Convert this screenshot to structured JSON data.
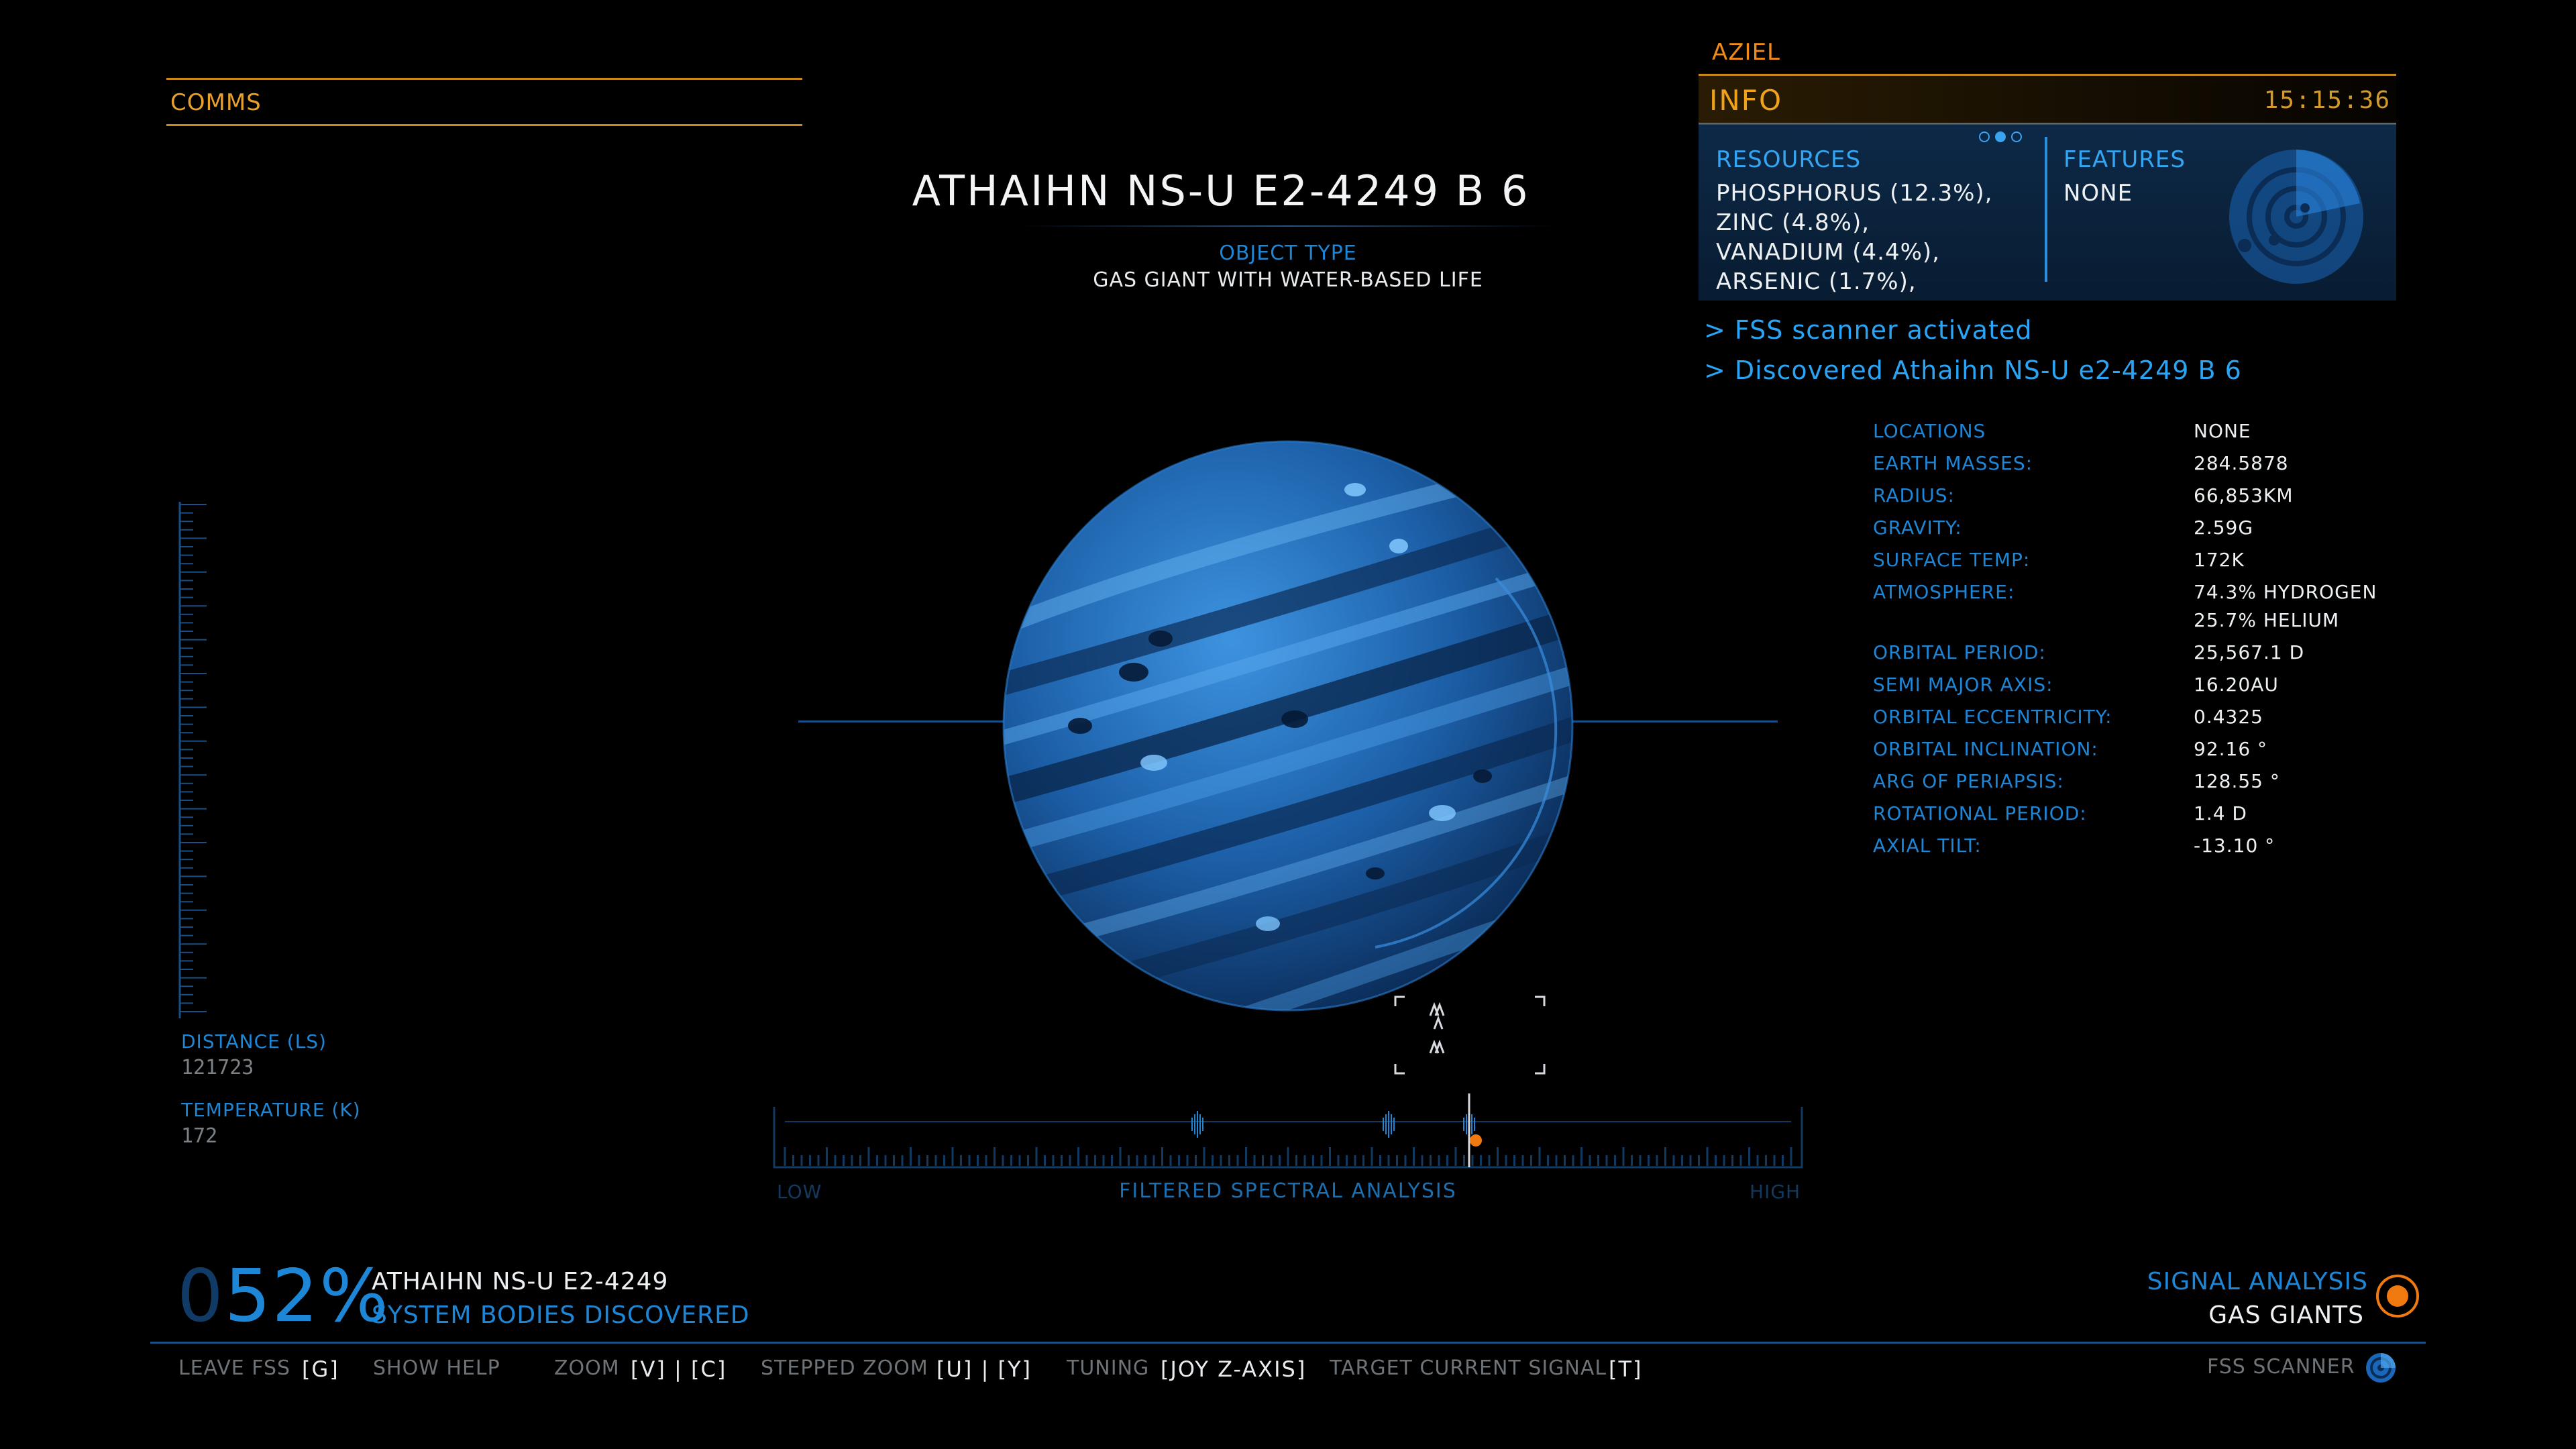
{
  "comms": {
    "label": "COMMS"
  },
  "body": {
    "name": "ATHAIHN NS-U E2-4249 B 6",
    "object_type_label": "OBJECT TYPE",
    "object_type": "GAS GIANT WITH WATER-BASED LIFE"
  },
  "info_panel": {
    "commander": "AZIEL",
    "header": "INFO",
    "time": "15:15:36",
    "page_indicator": {
      "count": 3,
      "active": 2
    },
    "resources_label": "RESOURCES",
    "resources": [
      "PHOSPHORUS (12.3%),",
      "ZINC (4.8%),",
      "VANADIUM (4.4%),",
      "ARSENIC (1.7%),"
    ],
    "features_label": "FEATURES",
    "features_value": "NONE",
    "radar_icon": "radar-scan-icon"
  },
  "log": [
    "> FSS scanner activated",
    "> Discovered Athaihn NS-U e2-4249 B 6"
  ],
  "stats": [
    {
      "label": "LOCATIONS",
      "value": "NONE"
    },
    {
      "label": "EARTH MASSES:",
      "value": "284.5878"
    },
    {
      "label": "RADIUS:",
      "value": "66,853KM"
    },
    {
      "label": "GRAVITY:",
      "value": "2.59G"
    },
    {
      "label": "SURFACE TEMP:",
      "value": "172K"
    },
    {
      "label": "ATMOSPHERE:",
      "value": "74.3% HYDROGEN",
      "value2": "25.7% HELIUM"
    },
    {
      "label": "ORBITAL PERIOD:",
      "value": "25,567.1 D"
    },
    {
      "label": "SEMI MAJOR AXIS:",
      "value": "16.20AU"
    },
    {
      "label": "ORBITAL ECCENTRICITY:",
      "value": "0.4325"
    },
    {
      "label": "ORBITAL INCLINATION:",
      "value": "92.16 °"
    },
    {
      "label": "ARG OF PERIAPSIS:",
      "value": "128.55 °"
    },
    {
      "label": "ROTATIONAL PERIOD:",
      "value": "1.4 D"
    },
    {
      "label": "AXIAL TILT:",
      "value": "-13.10 °"
    }
  ],
  "left_readout": {
    "distance_label": "DISTANCE (LS)",
    "distance_value": "121723",
    "temperature_label": "TEMPERATURE (K)",
    "temperature_value": "172"
  },
  "spectral": {
    "label": "FILTERED SPECTRAL ANALYSIS",
    "low": "LOW",
    "high": "HIGH",
    "tuner_position": 0.68,
    "signal_peaks": [
      0.41,
      0.6,
      0.68
    ]
  },
  "progress": {
    "percent_lead": "0",
    "percent": "52%",
    "system_name": "ATHAIHN NS-U E2-4249",
    "caption": "SYSTEM BODIES DISCOVERED"
  },
  "signal": {
    "label": "SIGNAL ANALYSIS",
    "value": "GAS GIANTS",
    "accent": "#f07a10"
  },
  "hints": [
    {
      "label": "LEAVE FSS",
      "keys": "[G]"
    },
    {
      "label": "SHOW HELP",
      "keys": ""
    },
    {
      "label": "ZOOM",
      "keys": "[V] | [C]"
    },
    {
      "label": "STEPPED ZOOM",
      "keys": "[U] | [Y]"
    },
    {
      "label": "TUNING",
      "keys": "[JOY Z-AXIS]"
    },
    {
      "label": "TARGET CURRENT SIGNAL",
      "keys": "[T]"
    }
  ],
  "fss_label": "FSS SCANNER",
  "colors": {
    "accent_blue": "#1d86d6",
    "accent_orange": "#f0a21a",
    "panel_blue": "#12375f"
  }
}
